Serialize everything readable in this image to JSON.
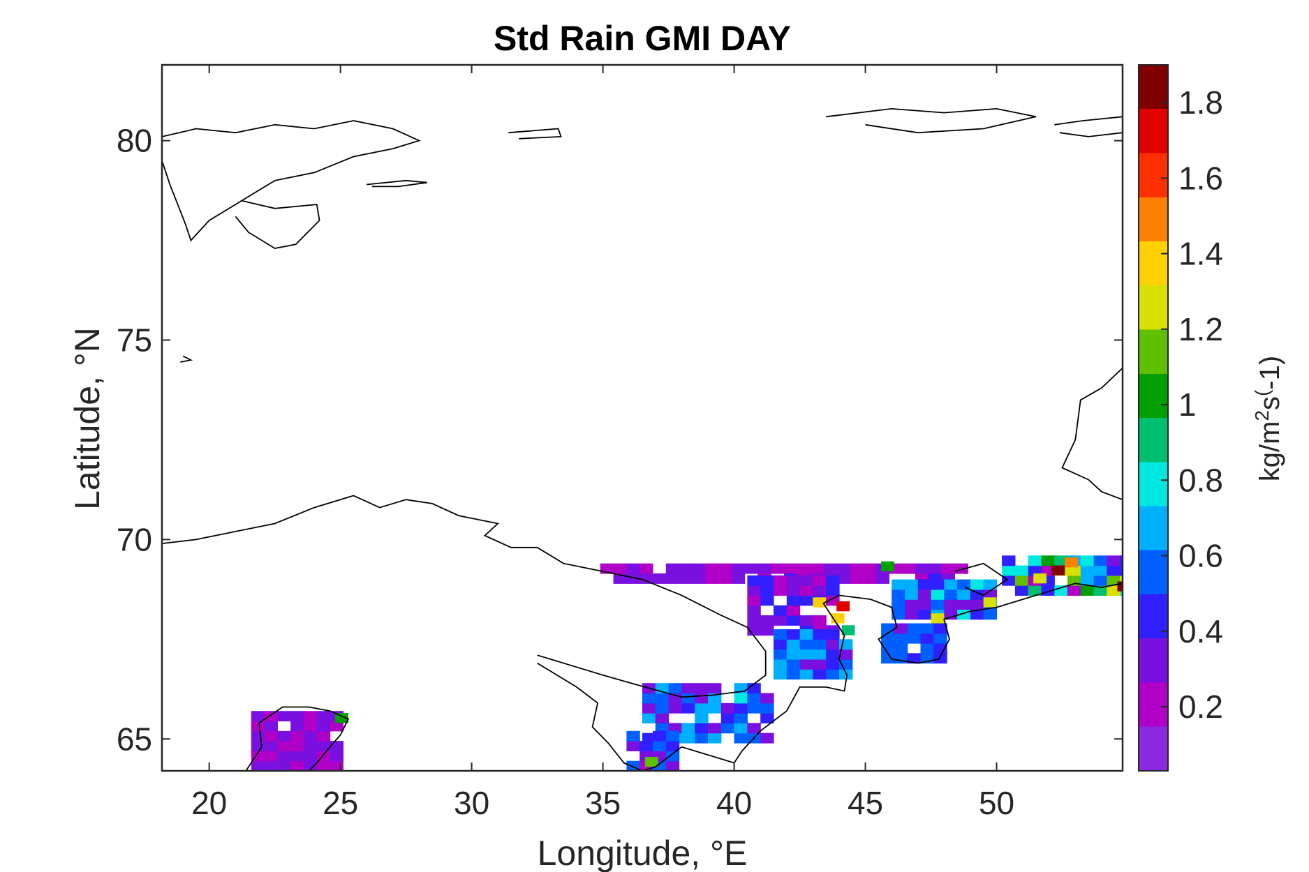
{
  "chart_data": {
    "type": "heatmap",
    "title": "Std Rain GMI DAY",
    "xlabel": "Longitude, °E",
    "ylabel": "Latitude, °N",
    "xlim": [
      18.2,
      54.8
    ],
    "ylim": [
      64.2,
      81.9
    ],
    "xticks": [
      20,
      25,
      30,
      35,
      40,
      45,
      50
    ],
    "yticks": [
      65,
      70,
      75,
      80
    ],
    "xtick_labels": [
      "20",
      "25",
      "30",
      "35",
      "40",
      "45",
      "50"
    ],
    "ytick_labels": [
      "65",
      "70",
      "75",
      "80"
    ],
    "grid": false,
    "colorbar": {
      "label_main": "kg/m",
      "label_sup1": "2",
      "label_mid": "s",
      "label_sup2": "(",
      "label_end": "-1)",
      "range": [
        0.03,
        1.9
      ],
      "ticks": [
        0.2,
        0.4,
        0.6,
        0.8,
        1,
        1.2,
        1.4,
        1.6,
        1.8
      ],
      "tick_labels": [
        "0.2",
        "0.4",
        "0.6",
        "0.8",
        "1",
        "1.2",
        "1.4",
        "1.6",
        "1.8"
      ],
      "colormap": [
        "#8a2be2",
        "#b000c8",
        "#7a10e0",
        "#3020ff",
        "#0060ff",
        "#00b0ff",
        "#00e8e0",
        "#00c070",
        "#00a000",
        "#60c000",
        "#d8e000",
        "#ffd000",
        "#ff8000",
        "#ff3000",
        "#e00000",
        "#800000"
      ]
    },
    "regions": [
      {
        "name": "barents-south-strip",
        "lon": [
          34.9,
          48.5
        ],
        "lat": [
          68.9,
          69.4
        ],
        "base": 0.28,
        "var": 0.12
      },
      {
        "name": "barents-east-strip",
        "lon": [
          50.2,
          54.8
        ],
        "lat": [
          68.6,
          69.4
        ],
        "base": 0.75,
        "var": 0.55
      },
      {
        "name": "white-sea-funnel",
        "lon": [
          40.5,
          44.0
        ],
        "lat": [
          67.6,
          68.9
        ],
        "base": 0.34,
        "var": 0.14
      },
      {
        "name": "white-sea-gorlo",
        "lon": [
          41.5,
          44.2
        ],
        "lat": [
          66.5,
          67.6
        ],
        "base": 0.5,
        "var": 0.2
      },
      {
        "name": "white-sea-basin",
        "lon": [
          36.5,
          41.5
        ],
        "lat": [
          64.9,
          66.4
        ],
        "base": 0.5,
        "var": 0.25
      },
      {
        "name": "kandalaksha-arm",
        "lon": [
          35.9,
          37.7
        ],
        "lat": [
          64.2,
          65.1
        ],
        "base": 0.45,
        "var": 0.2
      },
      {
        "name": "cheshskaya-bay",
        "lon": [
          45.6,
          48.0
        ],
        "lat": [
          66.9,
          67.7
        ],
        "base": 0.5,
        "var": 0.15
      },
      {
        "name": "pechora-strip",
        "lon": [
          46.0,
          50.0
        ],
        "lat": [
          68.0,
          68.8
        ],
        "base": 0.55,
        "var": 0.3
      },
      {
        "name": "gulf-of-bothnia",
        "lon": [
          21.6,
          24.8
        ],
        "lat": [
          64.2,
          65.6
        ],
        "base": 0.28,
        "var": 0.1
      }
    ],
    "hotspots": [
      {
        "lon": 43.9,
        "lat": 68.2,
        "value": 1.75
      },
      {
        "lon": 43.7,
        "lat": 67.9,
        "value": 1.35
      },
      {
        "lon": 44.1,
        "lat": 67.6,
        "value": 0.95
      },
      {
        "lon": 43.0,
        "lat": 68.3,
        "value": 1.35
      },
      {
        "lon": 45.6,
        "lat": 69.2,
        "value": 1.05
      },
      {
        "lon": 47.5,
        "lat": 67.9,
        "value": 1.25
      },
      {
        "lon": 49.5,
        "lat": 68.3,
        "value": 1.2
      },
      {
        "lon": 52.1,
        "lat": 69.1,
        "value": 1.85
      },
      {
        "lon": 52.6,
        "lat": 69.3,
        "value": 1.45
      },
      {
        "lon": 54.6,
        "lat": 68.7,
        "value": 1.9
      },
      {
        "lon": 51.4,
        "lat": 68.9,
        "value": 1.3
      },
      {
        "lon": 24.8,
        "lat": 65.4,
        "value": 1.0
      },
      {
        "lon": 36.6,
        "lat": 64.3,
        "value": 1.1
      }
    ],
    "coastlines": {
      "svalbard": [
        [
          18.2,
          80.1
        ],
        [
          19.5,
          80.3
        ],
        [
          21,
          80.2
        ],
        [
          22.5,
          80.4
        ],
        [
          24,
          80.3
        ],
        [
          25.5,
          80.5
        ],
        [
          27,
          80.3
        ],
        [
          28,
          80.0
        ],
        [
          27,
          79.8
        ],
        [
          25.5,
          79.6
        ],
        [
          24,
          79.2
        ],
        [
          22.5,
          79.0
        ],
        [
          21,
          78.4
        ],
        [
          20,
          78.0
        ],
        [
          19.3,
          77.5
        ],
        [
          19.1,
          77.9
        ],
        [
          18.8,
          78.4
        ],
        [
          18.5,
          78.9
        ],
        [
          18.2,
          79.5
        ]
      ],
      "edgeoya": [
        [
          21.2,
          78.5
        ],
        [
          22.5,
          78.3
        ],
        [
          24.1,
          78.4
        ],
        [
          24.2,
          78.0
        ],
        [
          23.3,
          77.4
        ],
        [
          22.5,
          77.3
        ],
        [
          21.5,
          77.7
        ],
        [
          21.0,
          78.1
        ]
      ],
      "kvitoya": [
        [
          31.4,
          80.2
        ],
        [
          33.3,
          80.3
        ],
        [
          33.4,
          80.1
        ],
        [
          31.8,
          80.05
        ]
      ],
      "kong-karls-land": [
        [
          26.0,
          78.9
        ],
        [
          27.5,
          79.0
        ],
        [
          28.3,
          78.95
        ],
        [
          27.2,
          78.85
        ],
        [
          26.2,
          78.85
        ]
      ],
      "franz-josef-west": [
        [
          43.5,
          80.6
        ],
        [
          46,
          80.8
        ],
        [
          48,
          80.7
        ],
        [
          50,
          80.8
        ],
        [
          51.5,
          80.6
        ],
        [
          49.5,
          80.3
        ],
        [
          47,
          80.2
        ],
        [
          45,
          80.4
        ]
      ],
      "franz-josef-east": [
        [
          52.2,
          80.4
        ],
        [
          53.3,
          80.5
        ],
        [
          54.8,
          80.6
        ],
        [
          54.8,
          80.2
        ],
        [
          53.5,
          80.1
        ],
        [
          52.4,
          80.2
        ]
      ],
      "novaya-zemlya": [
        [
          54.8,
          74.3
        ],
        [
          54.0,
          73.8
        ],
        [
          53.2,
          73.5
        ],
        [
          53.0,
          72.5
        ],
        [
          52.5,
          71.8
        ],
        [
          53.5,
          71.5
        ],
        [
          54.0,
          71.2
        ],
        [
          54.8,
          71.0
        ]
      ],
      "bear-island": [
        [
          19.0,
          74.6
        ],
        [
          19.3,
          74.5
        ],
        [
          18.9,
          74.45
        ]
      ],
      "scandinavia-kola-north": [
        [
          18.2,
          69.9
        ],
        [
          19.5,
          70.0
        ],
        [
          21,
          70.2
        ],
        [
          22.5,
          70.4
        ],
        [
          24,
          70.8
        ],
        [
          25.5,
          71.1
        ],
        [
          26.5,
          70.8
        ],
        [
          27.5,
          71.0
        ],
        [
          28.5,
          70.9
        ],
        [
          29.5,
          70.6
        ],
        [
          31,
          70.4
        ],
        [
          30.5,
          70.1
        ],
        [
          31.5,
          69.8
        ],
        [
          32.5,
          69.8
        ],
        [
          33.5,
          69.4
        ],
        [
          35,
          69.2
        ],
        [
          36.5,
          69.0
        ],
        [
          38,
          68.6
        ],
        [
          39.5,
          68.1
        ],
        [
          40.5,
          67.8
        ],
        [
          41.2,
          67.2
        ],
        [
          41.2,
          66.6
        ],
        [
          40.4,
          66.2
        ],
        [
          39.2,
          66.1
        ],
        [
          38.0,
          66.05
        ],
        [
          36.6,
          66.3
        ],
        [
          35.0,
          66.6
        ],
        [
          34.0,
          66.8
        ],
        [
          33.0,
          67.0
        ],
        [
          32.5,
          67.1
        ]
      ],
      "karelia-arkhangelsk": [
        [
          32.5,
          66.9
        ],
        [
          34.0,
          66.3
        ],
        [
          34.8,
          65.9
        ],
        [
          34.6,
          65.3
        ],
        [
          35.2,
          64.9
        ],
        [
          35.8,
          64.4
        ],
        [
          36.5,
          64.2
        ],
        [
          37.0,
          64.3
        ],
        [
          38.0,
          64.8
        ],
        [
          39.0,
          64.6
        ],
        [
          40.0,
          64.4
        ],
        [
          40.3,
          64.7
        ],
        [
          41.0,
          65.2
        ],
        [
          42.0,
          65.7
        ],
        [
          42.5,
          66.3
        ],
        [
          43.5,
          66.3
        ],
        [
          44.2,
          66.2
        ],
        [
          44.3,
          66.6
        ],
        [
          44.0,
          67.0
        ],
        [
          44.2,
          67.6
        ],
        [
          43.8,
          68.0
        ],
        [
          43.4,
          68.4
        ],
        [
          44.0,
          68.6
        ],
        [
          45.2,
          68.5
        ],
        [
          46.0,
          68.3
        ],
        [
          46.2,
          67.8
        ],
        [
          45.5,
          67.5
        ],
        [
          46.0,
          67.0
        ],
        [
          47.0,
          66.9
        ],
        [
          47.8,
          67.0
        ],
        [
          48.2,
          67.5
        ],
        [
          48.0,
          68.0
        ],
        [
          49.0,
          68.2
        ],
        [
          50.0,
          68.3
        ],
        [
          51.0,
          68.5
        ],
        [
          52.0,
          68.7
        ],
        [
          53.0,
          68.9
        ],
        [
          54.0,
          68.8
        ],
        [
          54.8,
          68.9
        ]
      ],
      "kolguev": [
        [
          48.4,
          69.2
        ],
        [
          49.5,
          69.4
        ],
        [
          50.4,
          69.0
        ],
        [
          49.5,
          68.6
        ],
        [
          48.8,
          68.8
        ]
      ],
      "bothnia-coast": [
        [
          21.4,
          64.2
        ],
        [
          22.0,
          64.8
        ],
        [
          21.9,
          65.4
        ],
        [
          22.8,
          65.8
        ],
        [
          23.8,
          65.8
        ],
        [
          24.6,
          65.7
        ],
        [
          25.3,
          65.5
        ],
        [
          25.0,
          65.1
        ],
        [
          24.6,
          64.8
        ],
        [
          24.1,
          64.4
        ],
        [
          23.8,
          64.2
        ]
      ]
    }
  }
}
